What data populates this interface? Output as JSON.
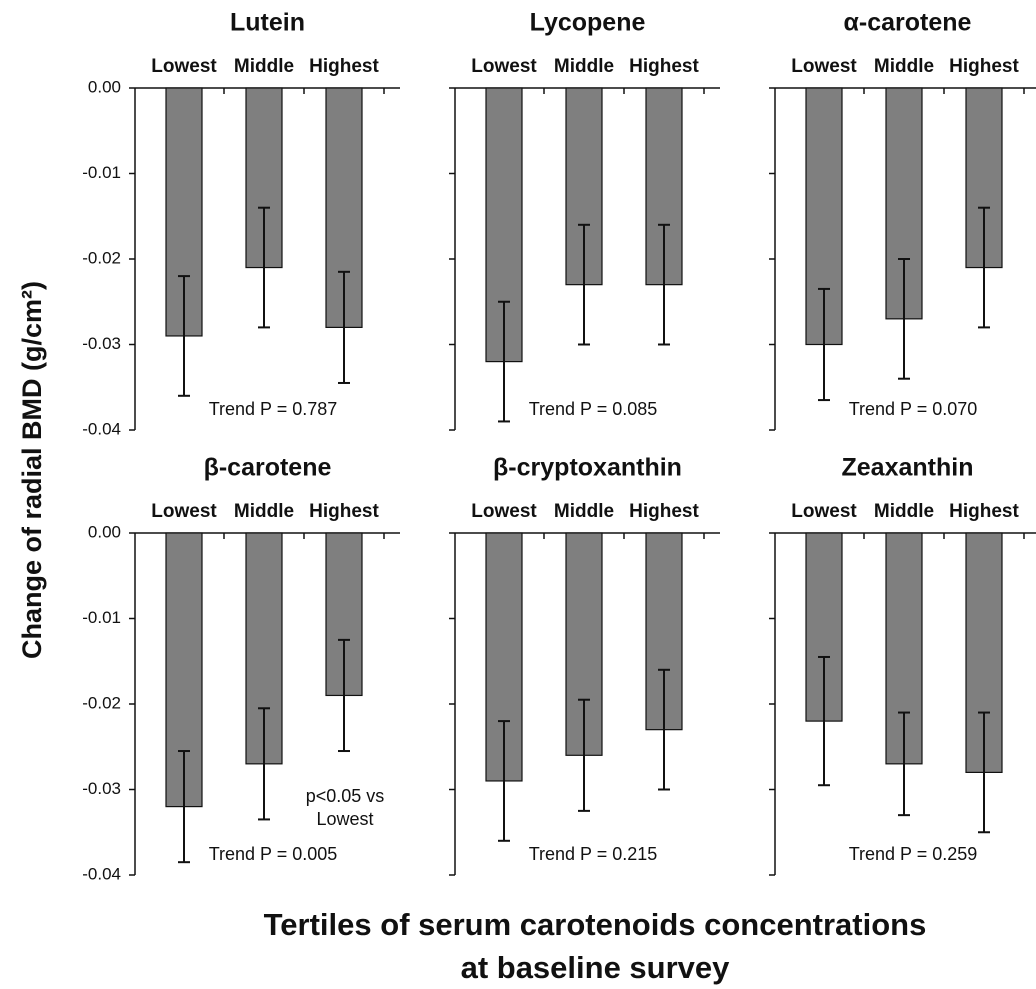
{
  "y_axis": {
    "label": "Change of radial BMD (g/cm²)",
    "ylim": [
      -0.04,
      0
    ],
    "yticks": [
      {
        "value": 0,
        "label": "0.00"
      },
      {
        "value": -0.01,
        "label": "-0.01"
      },
      {
        "value": -0.02,
        "label": "-0.02"
      },
      {
        "value": -0.03,
        "label": "-0.03"
      },
      {
        "value": -0.04,
        "label": "-0.04"
      }
    ]
  },
  "x_axis_label": [
    "Tertiles of serum carotenoids concentrations",
    "at baseline survey"
  ],
  "chart_data": [
    {
      "type": "bar",
      "title": "Lutein",
      "categories": [
        "Lowest",
        "Middle",
        "Highest"
      ],
      "values": [
        -0.029,
        -0.021,
        -0.028
      ],
      "errors": [
        0.007,
        0.007,
        0.0065
      ],
      "color": "#7f7f7f",
      "annotation": "Trend P = 0.787"
    },
    {
      "type": "bar",
      "title": "Lycopene",
      "categories": [
        "Lowest",
        "Middle",
        "Highest"
      ],
      "values": [
        -0.032,
        -0.023,
        -0.023
      ],
      "errors": [
        0.007,
        0.007,
        0.007
      ],
      "color": "#7f7f7f",
      "annotation": "Trend P = 0.085"
    },
    {
      "type": "bar",
      "title": "α-carotene",
      "categories": [
        "Lowest",
        "Middle",
        "Highest"
      ],
      "values": [
        -0.03,
        -0.027,
        -0.021
      ],
      "errors": [
        0.0065,
        0.007,
        0.007
      ],
      "color": "#7f7f7f",
      "annotation": "Trend P = 0.070"
    },
    {
      "type": "bar",
      "title": "β-carotene",
      "categories": [
        "Lowest",
        "Middle",
        "Highest"
      ],
      "values": [
        -0.032,
        -0.027,
        -0.019
      ],
      "errors": [
        0.0065,
        0.0065,
        0.0065
      ],
      "color": "#7f7f7f",
      "annotation": "Trend P = 0.005",
      "note": [
        "p<0.05 vs",
        "Lowest"
      ]
    },
    {
      "type": "bar",
      "title": "β-cryptoxanthin",
      "categories": [
        "Lowest",
        "Middle",
        "Highest"
      ],
      "values": [
        -0.029,
        -0.026,
        -0.023
      ],
      "errors": [
        0.007,
        0.0065,
        0.007
      ],
      "color": "#7f7f7f",
      "annotation": "Trend P = 0.215"
    },
    {
      "type": "bar",
      "title": "Zeaxanthin",
      "categories": [
        "Lowest",
        "Middle",
        "Highest"
      ],
      "values": [
        -0.022,
        -0.027,
        -0.028
      ],
      "errors": [
        0.0075,
        0.006,
        0.007
      ],
      "color": "#7f7f7f",
      "annotation": "Trend P = 0.259"
    }
  ]
}
